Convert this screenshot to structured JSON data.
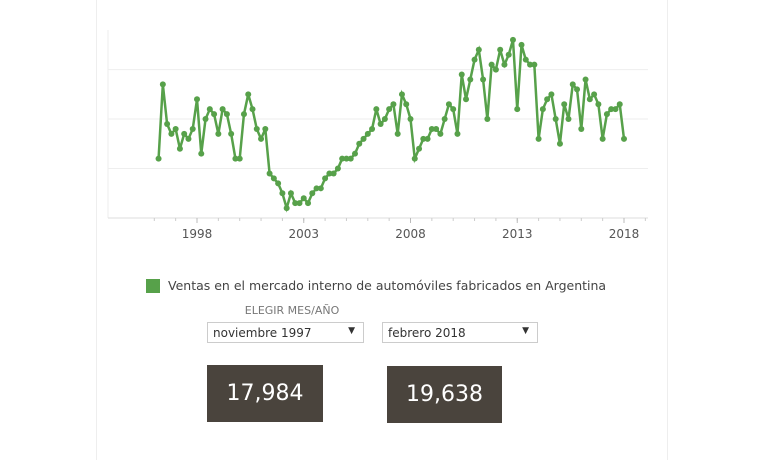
{
  "chart_data": {
    "type": "line",
    "series_name": "Ventas en el mercado interno de automóviles fabricados en Argentina",
    "x_start": 1996.2,
    "x_step": 0.2,
    "values_thousands": [
      12,
      27,
      19,
      17,
      18,
      14,
      17,
      16,
      18,
      24,
      13,
      20,
      22,
      21,
      17,
      22,
      21,
      17,
      12,
      12,
      21,
      25,
      22,
      18,
      16,
      18,
      9,
      8,
      7,
      5,
      2,
      5,
      3,
      3,
      4,
      3,
      5,
      6,
      6,
      8,
      9,
      9,
      10,
      12,
      12,
      12,
      13,
      15,
      16,
      17,
      18,
      22,
      19,
      20,
      22,
      23,
      17,
      25,
      23,
      20,
      12,
      14,
      16,
      16,
      18,
      18,
      17,
      20,
      23,
      22,
      17,
      29,
      24,
      28,
      32,
      34,
      28,
      20,
      31,
      30,
      34,
      31,
      33,
      36,
      22,
      35,
      32,
      31,
      31,
      16,
      22,
      24,
      25,
      20,
      15,
      23,
      20,
      27,
      26,
      18,
      28,
      24,
      25,
      23,
      16,
      21,
      22,
      22,
      23,
      16
    ],
    "x_ticks": [
      "1998",
      "2003",
      "2008",
      "2013",
      "2018"
    ],
    "x_tick_values": [
      1998,
      2003,
      2008,
      2013,
      2018
    ],
    "xlim": [
      1995.1,
      2019.1
    ],
    "ylim": [
      0,
      38
    ],
    "gridlines": [
      10,
      20,
      30
    ],
    "color": "#57a14a"
  },
  "legend": {
    "label": "Ventas en el mercado interno de automóviles fabricados en Argentina"
  },
  "filter": {
    "title": "ELEGIR MES/AÑO",
    "from": "noviembre 1997",
    "to": "febrero 2018"
  },
  "values": {
    "from": "17,984",
    "to": "19,638"
  }
}
